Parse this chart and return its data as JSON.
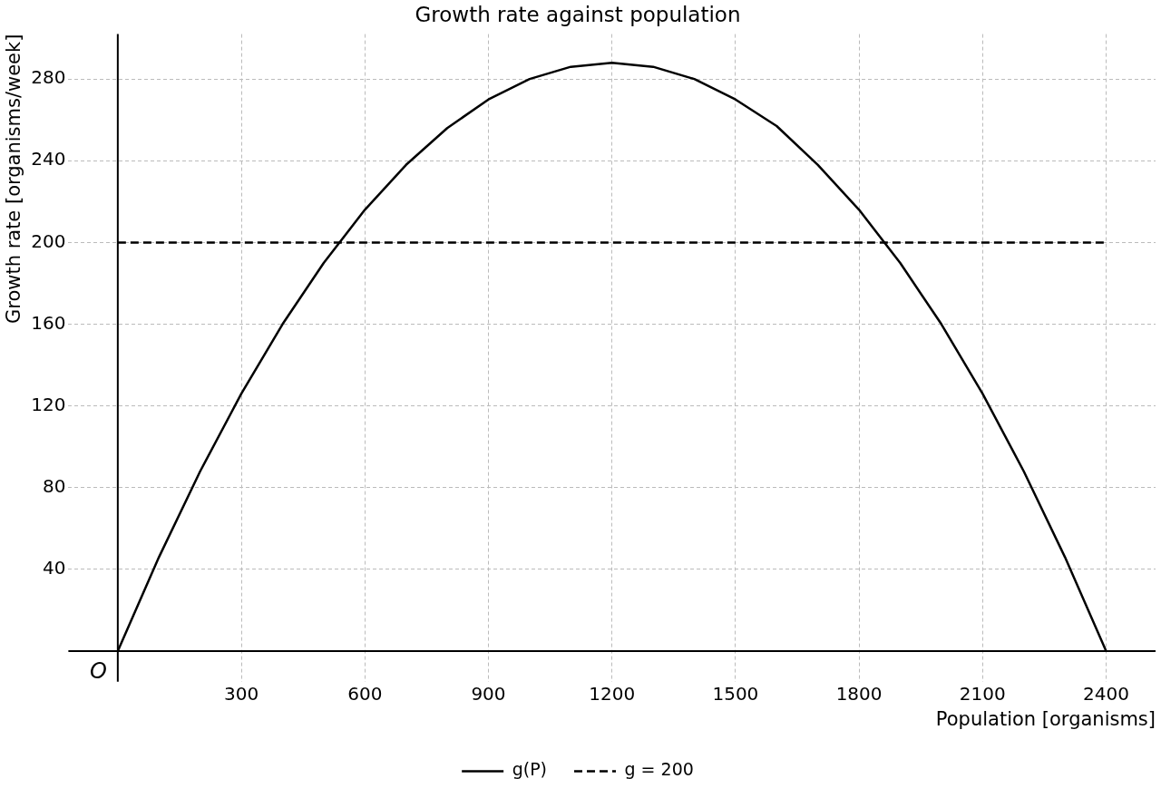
{
  "chart_data": {
    "type": "line",
    "title": "Growth rate against population",
    "xlabel": "Population [organisms]",
    "ylabel": "Growth rate [organisms/week]",
    "x": [
      0,
      100,
      200,
      300,
      400,
      500,
      600,
      700,
      800,
      900,
      1000,
      1100,
      1200,
      1300,
      1400,
      1500,
      1600,
      1700,
      1800,
      1900,
      2000,
      2100,
      2200,
      2300,
      2400
    ],
    "series": [
      {
        "name": "g(P)",
        "color": "#000000",
        "line_style": "solid",
        "values": [
          0,
          46,
          88,
          126,
          160,
          190,
          216,
          238,
          256,
          270,
          280,
          286,
          288,
          286,
          280,
          270,
          257,
          238,
          216,
          190,
          160,
          126,
          88,
          46,
          0
        ]
      },
      {
        "name": "g = 200",
        "color": "#000000",
        "line_style": "dashed",
        "x": [
          0,
          2400
        ],
        "values": [
          200,
          200
        ]
      }
    ],
    "xlim": [
      -120,
      2520
    ],
    "ylim": [
      -15,
      302
    ],
    "xticks": [
      300,
      600,
      900,
      1200,
      1500,
      1800,
      2100,
      2400
    ],
    "yticks": [
      40,
      80,
      120,
      160,
      200,
      240,
      280
    ],
    "annotations": [
      {
        "text": "O",
        "x": 0,
        "y": 0
      }
    ],
    "grid": true,
    "legend": "bottom",
    "marker": "none"
  }
}
